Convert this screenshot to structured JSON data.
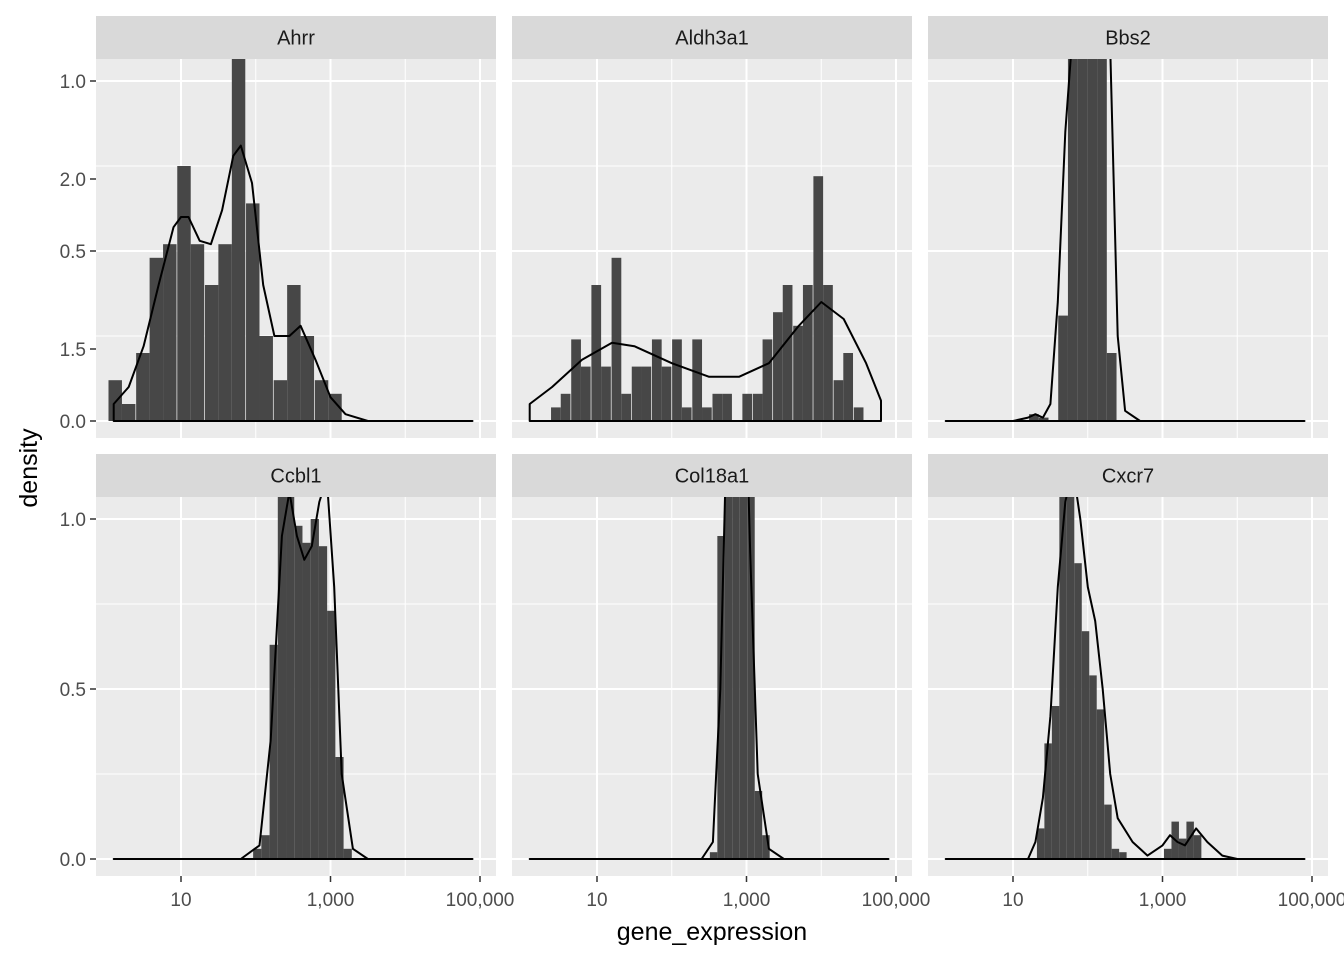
{
  "chart_data": {
    "type": "histogram+density (faceted)",
    "xlabel": "gene_expression",
    "ylabel": "density",
    "x_scale": "log10",
    "xlim_log10": [
      0.1,
      4.9
    ],
    "ylim": [
      0,
      2.1
    ],
    "x_ticks": [
      {
        "log10": 1,
        "label": "10"
      },
      {
        "log10": 3,
        "label": "1,000"
      },
      {
        "log10": 5,
        "label": "100,000"
      }
    ],
    "y_ticks": [
      {
        "value": 0,
        "label": "0.0"
      },
      {
        "value": 0.5,
        "label": "0.5"
      },
      {
        "value": 1,
        "label": "1.0"
      },
      {
        "value": 1.5,
        "label": "1.5"
      },
      {
        "value": 2,
        "label": "2.0"
      }
    ],
    "grid": true,
    "colors": {
      "panel_bg": "#ebebeb",
      "strip_bg": "#d9d9d9",
      "grid": "#ffffff",
      "bar": "#474747",
      "density_line": "#000000",
      "tick_text": "#4d4d4d"
    },
    "facets": [
      {
        "name": "Ahrr",
        "bins": [
          [
            0.12,
            0.12
          ],
          [
            0.3,
            0.05
          ],
          [
            0.49,
            0.2
          ],
          [
            0.67,
            0.48
          ],
          [
            0.85,
            0.52
          ],
          [
            1.04,
            0.75
          ],
          [
            1.22,
            0.52
          ],
          [
            1.41,
            0.4
          ],
          [
            1.59,
            0.52
          ],
          [
            1.77,
            1.19
          ],
          [
            1.96,
            0.64
          ],
          [
            2.14,
            0.25
          ],
          [
            2.33,
            0.12
          ],
          [
            2.51,
            0.4
          ],
          [
            2.69,
            0.25
          ],
          [
            2.88,
            0.12
          ],
          [
            3.06,
            0.08
          ],
          [
            3.25,
            0.0
          ]
        ],
        "density": [
          [
            0.1,
            0.05
          ],
          [
            0.3,
            0.1
          ],
          [
            0.5,
            0.22
          ],
          [
            0.7,
            0.4
          ],
          [
            0.9,
            0.57
          ],
          [
            1.0,
            0.6
          ],
          [
            1.1,
            0.6
          ],
          [
            1.25,
            0.53
          ],
          [
            1.4,
            0.52
          ],
          [
            1.55,
            0.62
          ],
          [
            1.7,
            0.78
          ],
          [
            1.8,
            0.81
          ],
          [
            1.95,
            0.7
          ],
          [
            2.1,
            0.4
          ],
          [
            2.25,
            0.25
          ],
          [
            2.45,
            0.25
          ],
          [
            2.6,
            0.28
          ],
          [
            2.8,
            0.18
          ],
          [
            3.0,
            0.07
          ],
          [
            3.2,
            0.02
          ],
          [
            3.5,
            0.0
          ],
          [
            4.9,
            0.0
          ]
        ]
      },
      {
        "name": "Aldh3a1",
        "bins": [
          [
            0.45,
            0.04
          ],
          [
            0.58,
            0.08
          ],
          [
            0.72,
            0.24
          ],
          [
            0.85,
            0.16
          ],
          [
            0.99,
            0.4
          ],
          [
            1.12,
            0.16
          ],
          [
            1.26,
            0.48
          ],
          [
            1.39,
            0.08
          ],
          [
            1.53,
            0.16
          ],
          [
            1.66,
            0.16
          ],
          [
            1.8,
            0.24
          ],
          [
            1.93,
            0.16
          ],
          [
            2.07,
            0.24
          ],
          [
            2.2,
            0.04
          ],
          [
            2.34,
            0.24
          ],
          [
            2.47,
            0.04
          ],
          [
            2.61,
            0.08
          ],
          [
            2.74,
            0.08
          ],
          [
            2.88,
            0.0
          ],
          [
            3.01,
            0.08
          ],
          [
            3.15,
            0.08
          ],
          [
            3.28,
            0.24
          ],
          [
            3.42,
            0.32
          ],
          [
            3.55,
            0.4
          ],
          [
            3.69,
            0.28
          ],
          [
            3.82,
            0.4
          ],
          [
            3.96,
            0.72
          ],
          [
            4.09,
            0.4
          ],
          [
            4.23,
            0.12
          ],
          [
            4.36,
            0.2
          ],
          [
            4.5,
            0.04
          ]
        ],
        "density": [
          [
            0.1,
            0.05
          ],
          [
            0.4,
            0.1
          ],
          [
            0.8,
            0.18
          ],
          [
            1.2,
            0.23
          ],
          [
            1.5,
            0.22
          ],
          [
            2.0,
            0.17
          ],
          [
            2.5,
            0.13
          ],
          [
            2.9,
            0.13
          ],
          [
            3.3,
            0.17
          ],
          [
            3.7,
            0.28
          ],
          [
            4.0,
            0.35
          ],
          [
            4.3,
            0.3
          ],
          [
            4.6,
            0.17
          ],
          [
            4.8,
            0.06
          ]
        ]
      },
      {
        "name": "Bbs2",
        "bins": [
          [
            1.28,
            0.02
          ],
          [
            1.41,
            0.01
          ],
          [
            1.54,
            0.0
          ],
          [
            1.67,
            0.31
          ],
          [
            1.8,
            1.15
          ],
          [
            1.93,
            1.19
          ],
          [
            2.06,
            1.41
          ],
          [
            2.19,
            1.59
          ],
          [
            2.32,
            0.2
          ],
          [
            2.45,
            0.0
          ]
        ],
        "density": [
          [
            0.1,
            0.0
          ],
          [
            1.0,
            0.0
          ],
          [
            1.2,
            0.01
          ],
          [
            1.3,
            0.02
          ],
          [
            1.4,
            0.01
          ],
          [
            1.5,
            0.05
          ],
          [
            1.6,
            0.35
          ],
          [
            1.7,
            0.85
          ],
          [
            1.8,
            1.15
          ],
          [
            1.9,
            1.2
          ],
          [
            2.0,
            1.25
          ],
          [
            2.1,
            1.55
          ],
          [
            2.2,
            1.7
          ],
          [
            2.3,
            1.1
          ],
          [
            2.4,
            0.25
          ],
          [
            2.5,
            0.03
          ],
          [
            2.7,
            0.0
          ],
          [
            4.9,
            0.0
          ]
        ]
      },
      {
        "name": "Ccbl1",
        "bins": [
          [
            2.02,
            0.03
          ],
          [
            2.13,
            0.07
          ],
          [
            2.24,
            0.63
          ],
          [
            2.35,
            1.23
          ],
          [
            2.46,
            1.1
          ],
          [
            2.57,
            0.98
          ],
          [
            2.68,
            0.93
          ],
          [
            2.79,
            1.0
          ],
          [
            2.9,
            0.92
          ],
          [
            3.01,
            0.73
          ],
          [
            3.12,
            0.3
          ],
          [
            3.23,
            0.03
          ]
        ],
        "density": [
          [
            0.1,
            0.0
          ],
          [
            1.8,
            0.0
          ],
          [
            2.05,
            0.04
          ],
          [
            2.2,
            0.35
          ],
          [
            2.35,
            0.95
          ],
          [
            2.45,
            1.08
          ],
          [
            2.55,
            0.95
          ],
          [
            2.65,
            0.88
          ],
          [
            2.75,
            0.92
          ],
          [
            2.85,
            1.05
          ],
          [
            2.95,
            1.12
          ],
          [
            3.05,
            0.8
          ],
          [
            3.15,
            0.25
          ],
          [
            3.3,
            0.03
          ],
          [
            3.5,
            0.0
          ],
          [
            4.9,
            0.0
          ]
        ]
      },
      {
        "name": "Col18a1",
        "bins": [
          [
            2.56,
            0.02
          ],
          [
            2.66,
            0.95
          ],
          [
            2.76,
            1.1
          ],
          [
            2.86,
            1.93
          ],
          [
            2.96,
            1.34
          ],
          [
            3.06,
            1.1
          ],
          [
            3.16,
            0.2
          ],
          [
            3.26,
            0.07
          ]
        ],
        "density": [
          [
            0.1,
            0.0
          ],
          [
            2.4,
            0.0
          ],
          [
            2.55,
            0.05
          ],
          [
            2.65,
            0.5
          ],
          [
            2.75,
            1.4
          ],
          [
            2.85,
            2.02
          ],
          [
            2.95,
            1.7
          ],
          [
            3.05,
            0.9
          ],
          [
            3.15,
            0.25
          ],
          [
            3.3,
            0.03
          ],
          [
            3.5,
            0.0
          ],
          [
            4.9,
            0.0
          ]
        ]
      },
      {
        "name": "Cxcr7",
        "bins": [
          [
            1.27,
            0.0
          ],
          [
            1.37,
            0.09
          ],
          [
            1.47,
            0.34
          ],
          [
            1.57,
            0.45
          ],
          [
            1.67,
            1.34
          ],
          [
            1.77,
            1.23
          ],
          [
            1.87,
            0.87
          ],
          [
            1.97,
            0.67
          ],
          [
            2.07,
            0.54
          ],
          [
            2.17,
            0.44
          ],
          [
            2.27,
            0.16
          ],
          [
            2.37,
            0.03
          ],
          [
            2.47,
            0.02
          ],
          [
            2.97,
            0.0
          ],
          [
            3.07,
            0.03
          ],
          [
            3.17,
            0.11
          ],
          [
            3.27,
            0.06
          ],
          [
            3.37,
            0.11
          ],
          [
            3.47,
            0.07
          ]
        ],
        "density": [
          [
            0.1,
            0.0
          ],
          [
            1.2,
            0.0
          ],
          [
            1.3,
            0.05
          ],
          [
            1.4,
            0.18
          ],
          [
            1.5,
            0.42
          ],
          [
            1.6,
            0.8
          ],
          [
            1.7,
            1.05
          ],
          [
            1.8,
            1.15
          ],
          [
            1.9,
            1.0
          ],
          [
            2.0,
            0.8
          ],
          [
            2.1,
            0.7
          ],
          [
            2.2,
            0.5
          ],
          [
            2.3,
            0.25
          ],
          [
            2.4,
            0.12
          ],
          [
            2.6,
            0.05
          ],
          [
            2.8,
            0.01
          ],
          [
            3.0,
            0.04
          ],
          [
            3.1,
            0.07
          ],
          [
            3.2,
            0.05
          ],
          [
            3.3,
            0.04
          ],
          [
            3.45,
            0.09
          ],
          [
            3.6,
            0.05
          ],
          [
            3.8,
            0.01
          ],
          [
            4.0,
            0.0
          ],
          [
            4.9,
            0.0
          ]
        ]
      }
    ]
  }
}
